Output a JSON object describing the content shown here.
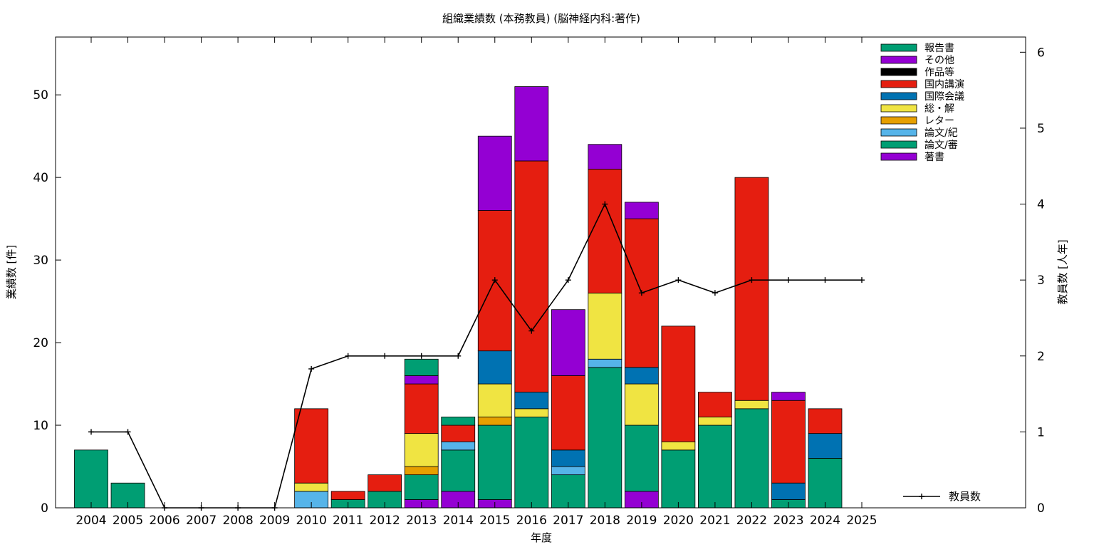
{
  "chart_data": {
    "type": "bar",
    "stacked": true,
    "title": "組織業績数 (本務教員) (脳神経内科:著作)",
    "xlabel": "年度",
    "ylabel": "業績数 [件]",
    "y2label": "教員数 [人年]",
    "ylim": [
      0,
      57
    ],
    "y2lim": [
      0,
      6.2
    ],
    "yticks": [
      0,
      10,
      20,
      30,
      40,
      50
    ],
    "y2ticks": [
      0,
      1,
      2,
      3,
      4,
      5,
      6
    ],
    "categories": [
      "2004",
      "2005",
      "2006",
      "2007",
      "2008",
      "2009",
      "2010",
      "2011",
      "2012",
      "2013",
      "2014",
      "2015",
      "2016",
      "2017",
      "2018",
      "2019",
      "2020",
      "2021",
      "2022",
      "2023",
      "2024",
      "2025"
    ],
    "series": [
      {
        "name": "著書",
        "color": "#9400d3",
        "values": [
          0,
          0,
          0,
          0,
          0,
          0,
          0,
          0,
          0,
          1,
          2,
          1,
          0,
          0,
          0,
          2,
          0,
          0,
          0,
          0,
          0,
          0
        ]
      },
      {
        "name": "論文/審",
        "color": "#009e73",
        "values": [
          7,
          3,
          0,
          0,
          0,
          0,
          0,
          1,
          2,
          3,
          5,
          9,
          11,
          4,
          17,
          8,
          7,
          10,
          12,
          1,
          6,
          0
        ]
      },
      {
        "name": "論文/紀",
        "color": "#56b4e9",
        "values": [
          0,
          0,
          0,
          0,
          0,
          0,
          2,
          0,
          0,
          0,
          1,
          0,
          0,
          1,
          1,
          0,
          0,
          0,
          0,
          0,
          0,
          0
        ]
      },
      {
        "name": "レター",
        "color": "#e69f00",
        "values": [
          0,
          0,
          0,
          0,
          0,
          0,
          0,
          0,
          0,
          1,
          0,
          1,
          0,
          0,
          0,
          0,
          0,
          0,
          0,
          0,
          0,
          0
        ]
      },
      {
        "name": "総・解",
        "color": "#f0e442",
        "values": [
          0,
          0,
          0,
          0,
          0,
          0,
          1,
          0,
          0,
          4,
          0,
          4,
          1,
          0,
          8,
          5,
          1,
          1,
          1,
          0,
          0,
          0
        ]
      },
      {
        "name": "国際会議",
        "color": "#0072b2",
        "values": [
          0,
          0,
          0,
          0,
          0,
          0,
          0,
          0,
          0,
          0,
          0,
          4,
          2,
          2,
          0,
          2,
          0,
          0,
          0,
          2,
          3,
          0
        ]
      },
      {
        "name": "国内講演",
        "color": "#e51e10",
        "values": [
          0,
          0,
          0,
          0,
          0,
          0,
          9,
          1,
          2,
          6,
          2,
          17,
          28,
          9,
          15,
          18,
          14,
          3,
          27,
          10,
          3,
          0
        ]
      },
      {
        "name": "作品等",
        "color": "#000000",
        "values": [
          0,
          0,
          0,
          0,
          0,
          0,
          0,
          0,
          0,
          0,
          0,
          0,
          0,
          0,
          0,
          0,
          0,
          0,
          0,
          0,
          0,
          0
        ]
      },
      {
        "name": "その他",
        "color": "#9400d3",
        "values": [
          0,
          0,
          0,
          0,
          0,
          0,
          0,
          0,
          0,
          1,
          0,
          9,
          9,
          8,
          3,
          2,
          0,
          0,
          0,
          1,
          0,
          0
        ]
      },
      {
        "name": "報告書",
        "color": "#009e73",
        "values": [
          0,
          0,
          0,
          0,
          0,
          0,
          0,
          0,
          0,
          2,
          1,
          0,
          0,
          0,
          0,
          0,
          0,
          0,
          0,
          0,
          0,
          0
        ]
      }
    ],
    "line": {
      "name": "教員数",
      "color": "#000000",
      "axis": "y2",
      "values": [
        1,
        1,
        0,
        0,
        0,
        0,
        1.83,
        2,
        2,
        2,
        2,
        3,
        2.33,
        3,
        4,
        2.83,
        3,
        2.83,
        3,
        3,
        3,
        3
      ]
    },
    "legend_order": [
      "報告書",
      "その他",
      "作品等",
      "国内講演",
      "国際会議",
      "総・解",
      "レター",
      "論文/紀",
      "論文/審",
      "著書"
    ],
    "legend_position": "top-right",
    "grid": false
  }
}
